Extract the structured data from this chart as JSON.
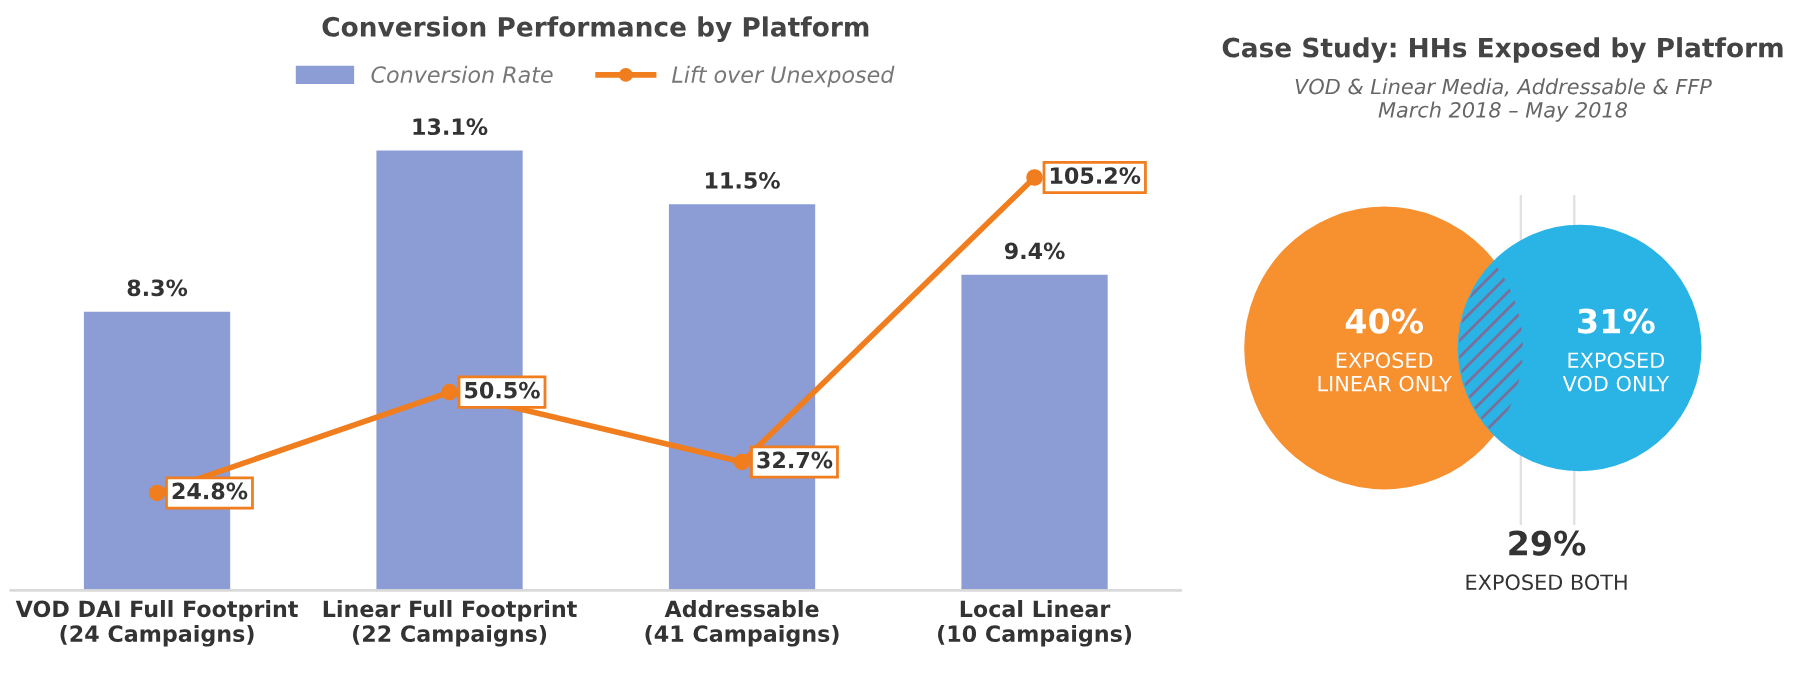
{
  "chart_data": [
    {
      "type": "bar",
      "title": "Conversion Performance by Platform",
      "categories": [
        "VOD DAI Full Footprint\n(24 Campaigns)",
        "Linear Full Footprint\n(22 Campaigns)",
        "Addressable\n(41 Campaigns)",
        "Local Linear\n(10 Campaigns)"
      ],
      "series": [
        {
          "name": "Conversion Rate",
          "type": "bar",
          "color": "#8c9dd6",
          "values": [
            8.3,
            13.1,
            11.5,
            9.4
          ],
          "value_labels": [
            "8.3%",
            "13.1%",
            "11.5%",
            "9.4%"
          ]
        },
        {
          "name": "Lift over Unexposed",
          "type": "line",
          "axis": "y2",
          "color": "#f07d1e",
          "marker": "circle",
          "values": [
            24.8,
            50.5,
            32.7,
            105.2
          ],
          "value_labels": [
            "24.8%",
            "50.5%",
            "32.7%",
            "105.2%"
          ]
        }
      ],
      "legend": "top",
      "grid": false
    },
    {
      "type": "other",
      "title": "Case Study: HHs Exposed by Platform",
      "subtitle": "VOD & Linear Media, Addressable & FFP\nMarch 2018 – May 2018",
      "categories": [
        "EXPOSED\nLINEAR ONLY",
        "EXPOSED\nVOD ONLY",
        "EXPOSED BOTH"
      ],
      "values": [
        40,
        31,
        29
      ],
      "value_labels": [
        "40%",
        "31%",
        "29%"
      ],
      "colors": [
        "#f7902f",
        "#2ab4e6",
        "#7a6e9a"
      ]
    }
  ]
}
